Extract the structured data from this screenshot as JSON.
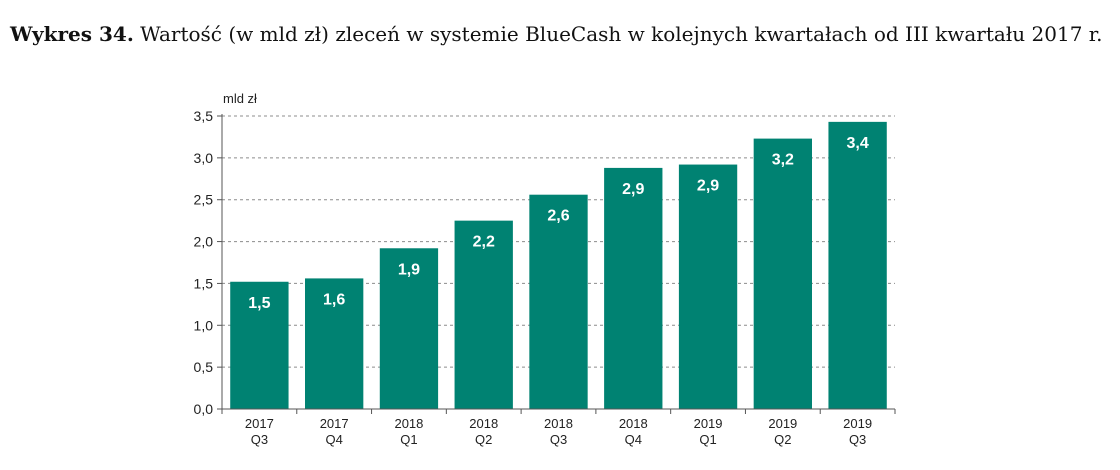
{
  "caption": {
    "label": "Wykres 34.",
    "text": " Wartość (w mld zł) zleceń w systemie BlueCash w kolejnych kwartałach od III kwartału 2017 r."
  },
  "chart_data": {
    "type": "bar",
    "title": "Wartość (w mld zł) zleceń w systemie BlueCash w kolejnych kwartałach od III kwartału 2017 r.",
    "ylabel": "mld zł",
    "xlabel": "",
    "ylim": [
      0,
      3.5
    ],
    "yticks": [
      0,
      0.5,
      1.0,
      1.5,
      2.0,
      2.5,
      3.0,
      3.5
    ],
    "ytick_labels": [
      "0,0",
      "0,5",
      "1,0",
      "1,5",
      "2,0",
      "2,5",
      "3,0",
      "3,5"
    ],
    "grid": true,
    "bar_color": "#008272",
    "categories": [
      [
        "2017",
        "Q3"
      ],
      [
        "2017",
        "Q4"
      ],
      [
        "2018",
        "Q1"
      ],
      [
        "2018",
        "Q2"
      ],
      [
        "2018",
        "Q3"
      ],
      [
        "2018",
        "Q4"
      ],
      [
        "2019",
        "Q1"
      ],
      [
        "2019",
        "Q2"
      ],
      [
        "2019",
        "Q3"
      ]
    ],
    "values": [
      1.52,
      1.56,
      1.92,
      2.25,
      2.56,
      2.88,
      2.92,
      3.23,
      3.43
    ],
    "data_labels": [
      "1,5",
      "1,6",
      "1,9",
      "2,2",
      "2,6",
      "2,9",
      "2,9",
      "3,2",
      "3,4"
    ]
  }
}
